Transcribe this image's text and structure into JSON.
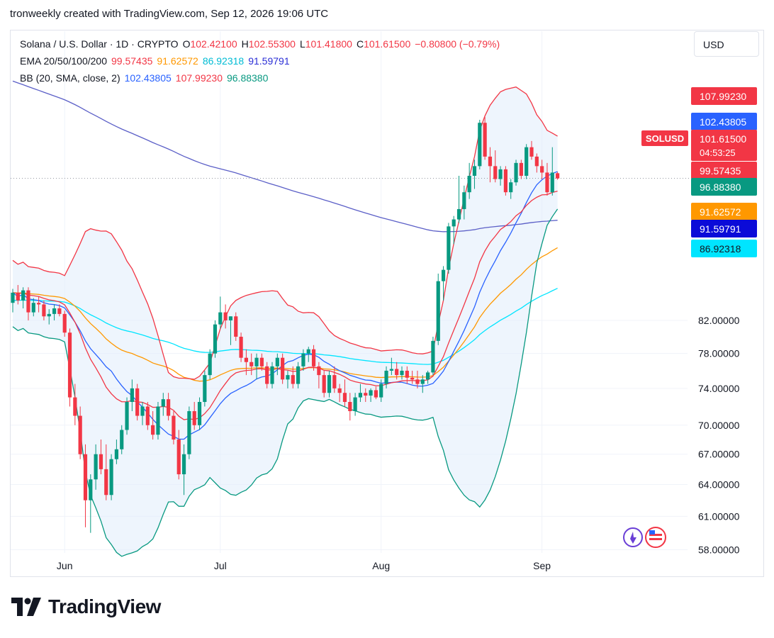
{
  "header": {
    "attribution": "tronweekly created with TradingView.com, Sep 12, 2026 19:06 UTC"
  },
  "legend": {
    "symbol": "Solana / U.S. Dollar · 1D · CRYPTO",
    "o_label": "O",
    "o": "102.42100",
    "h_label": "H",
    "h": "102.55300",
    "l_label": "L",
    "l": "101.41800",
    "c_label": "C",
    "c": "101.61500",
    "change": "−0.80800 (−0.79%)",
    "ema_label": "EMA 20/50/100/200",
    "ema20": "99.57435",
    "ema50": "91.62572",
    "ema100": "86.92318",
    "ema200": "91.59791",
    "bb_label": "BB (20, SMA, close, 2)",
    "bb_basis": "102.43805",
    "bb_upper": "107.99230",
    "bb_lower": "96.88380"
  },
  "currency_button": "USD",
  "brand": "TradingView",
  "colors": {
    "up": "#089981",
    "down": "#f23645",
    "ema20": "#f23645",
    "ema50": "#ff9800",
    "ema100": "#00e5ff",
    "ema200": "#5b5fc7",
    "bb_basis": "#2962ff",
    "bb_upper": "#f23645",
    "bb_lower": "#089981",
    "bb_fill": "#e3eefb"
  },
  "chart_data": {
    "type": "candlestick",
    "title": "Solana / U.S. Dollar · 1D · CRYPTO",
    "x_tick_labels": [
      "Jun",
      "Jul",
      "Aug",
      "Sep"
    ],
    "y_tick_labels": [
      "58.00000",
      "61.00000",
      "64.00000",
      "67.00000",
      "70.00000",
      "74.00000",
      "78.00000",
      "82.00000"
    ],
    "price_axis_scale": "log",
    "y_range": [
      56.5,
      125
    ],
    "start_date": "2026-05-22",
    "candles": [
      [
        84.2,
        86.0,
        83.0,
        85.5
      ],
      [
        85.5,
        86.5,
        84.0,
        84.5
      ],
      [
        84.5,
        86.2,
        83.5,
        85.8
      ],
      [
        85.8,
        86.2,
        82.0,
        83.0
      ],
      [
        83.0,
        84.8,
        82.5,
        84.2
      ],
      [
        84.2,
        85.0,
        83.0,
        84.0
      ],
      [
        84.0,
        84.5,
        82.0,
        82.5
      ],
      [
        82.5,
        83.4,
        81.5,
        82.8
      ],
      [
        82.8,
        84.0,
        82.0,
        83.5
      ],
      [
        83.5,
        84.0,
        82.5,
        82.8
      ],
      [
        82.8,
        83.2,
        80.0,
        80.5
      ],
      [
        80.5,
        81.0,
        72.0,
        73.0
      ],
      [
        73.0,
        74.5,
        70.0,
        71.0
      ],
      [
        71.0,
        72.0,
        66.5,
        67.0
      ],
      [
        67.0,
        68.0,
        60.0,
        62.5
      ],
      [
        62.5,
        65.0,
        59.5,
        64.5
      ],
      [
        64.5,
        68.0,
        63.5,
        67.0
      ],
      [
        67.0,
        68.5,
        65.0,
        65.5
      ],
      [
        65.5,
        68.0,
        62.5,
        63.0
      ],
      [
        63.0,
        67.0,
        62.5,
        66.5
      ],
      [
        66.5,
        68.5,
        66.0,
        67.5
      ],
      [
        67.5,
        70.0,
        67.0,
        69.5
      ],
      [
        69.5,
        73.0,
        69.0,
        72.5
      ],
      [
        72.5,
        75.0,
        71.5,
        74.0
      ],
      [
        74.0,
        74.5,
        70.5,
        71.0
      ],
      [
        71.0,
        72.5,
        70.0,
        72.0
      ],
      [
        72.0,
        72.5,
        69.5,
        70.0
      ],
      [
        70.0,
        71.5,
        68.5,
        69.0
      ],
      [
        69.0,
        72.5,
        68.5,
        72.0
      ],
      [
        72.0,
        73.5,
        71.0,
        72.8
      ],
      [
        72.8,
        73.5,
        70.5,
        71.0
      ],
      [
        71.0,
        71.5,
        68.0,
        68.5
      ],
      [
        68.5,
        69.5,
        64.5,
        65.0
      ],
      [
        65.0,
        68.0,
        63.0,
        67.0
      ],
      [
        67.0,
        72.0,
        66.5,
        71.5
      ],
      [
        71.5,
        72.5,
        69.5,
        70.0
      ],
      [
        70.0,
        73.0,
        69.5,
        72.5
      ],
      [
        72.5,
        76.0,
        72.0,
        75.5
      ],
      [
        75.5,
        78.5,
        75.0,
        78.0
      ],
      [
        78.0,
        82.0,
        77.5,
        81.5
      ],
      [
        81.5,
        85.0,
        81.0,
        83.0
      ],
      [
        83.0,
        84.0,
        81.0,
        82.0
      ],
      [
        82.0,
        82.5,
        79.0,
        82.5
      ],
      [
        82.5,
        83.0,
        79.5,
        80.0
      ],
      [
        80.0,
        80.5,
        77.0,
        77.5
      ],
      [
        77.5,
        78.5,
        75.5,
        77.0
      ],
      [
        77.0,
        78.0,
        75.5,
        76.5
      ],
      [
        76.5,
        78.0,
        75.0,
        77.5
      ],
      [
        77.5,
        78.0,
        76.0,
        76.5
      ],
      [
        76.5,
        77.0,
        74.0,
        74.5
      ],
      [
        74.5,
        77.0,
        74.0,
        76.5
      ],
      [
        76.5,
        78.0,
        75.5,
        77.5
      ],
      [
        77.5,
        78.0,
        74.5,
        75.0
      ],
      [
        75.0,
        76.0,
        74.0,
        75.5
      ],
      [
        75.5,
        76.5,
        74.0,
        74.5
      ],
      [
        74.5,
        77.0,
        74.0,
        76.5
      ],
      [
        76.5,
        78.5,
        76.0,
        78.0
      ],
      [
        78.0,
        78.8,
        77.0,
        78.5
      ],
      [
        78.5,
        79.0,
        76.0,
        76.5
      ],
      [
        76.5,
        77.0,
        74.0,
        75.5
      ],
      [
        75.5,
        76.0,
        73.0,
        73.5
      ],
      [
        73.5,
        76.0,
        73.0,
        75.5
      ],
      [
        75.5,
        76.5,
        73.5,
        74.0
      ],
      [
        74.0,
        74.5,
        72.5,
        73.5
      ],
      [
        73.5,
        75.0,
        72.0,
        72.5
      ],
      [
        72.5,
        73.5,
        70.5,
        71.5
      ],
      [
        71.5,
        73.5,
        71.0,
        73.0
      ],
      [
        73.0,
        74.5,
        72.5,
        73.5
      ],
      [
        73.5,
        74.0,
        72.5,
        73.2
      ],
      [
        73.2,
        74.0,
        72.5,
        73.8
      ],
      [
        73.8,
        74.2,
        72.8,
        73.0
      ],
      [
        73.0,
        75.0,
        72.5,
        74.5
      ],
      [
        74.5,
        76.5,
        74.0,
        76.0
      ],
      [
        76.0,
        77.5,
        75.5,
        76.2
      ],
      [
        76.2,
        77.0,
        75.0,
        75.5
      ],
      [
        75.5,
        76.5,
        75.0,
        76.0
      ],
      [
        76.0,
        76.5,
        74.5,
        75.2
      ],
      [
        75.2,
        76.0,
        74.5,
        75.0
      ],
      [
        75.0,
        76.0,
        74.0,
        74.5
      ],
      [
        74.5,
        75.5,
        73.5,
        75.0
      ],
      [
        75.0,
        76.0,
        74.5,
        75.8
      ],
      [
        75.8,
        80.0,
        75.5,
        79.5
      ],
      [
        79.5,
        88.0,
        79.0,
        87.0
      ],
      [
        87.0,
        89.0,
        84.5,
        88.5
      ],
      [
        88.5,
        95.0,
        88.0,
        94.5
      ],
      [
        94.5,
        96.0,
        92.0,
        95.5
      ],
      [
        95.5,
        102.0,
        95.0,
        97.0
      ],
      [
        97.0,
        100.5,
        95.5,
        99.5
      ],
      [
        99.5,
        104.0,
        98.5,
        102.0
      ],
      [
        102.0,
        104.5,
        100.0,
        103.5
      ],
      [
        103.5,
        111.0,
        103.0,
        110.5
      ],
      [
        110.5,
        111.5,
        104.5,
        105.0
      ],
      [
        105.0,
        106.5,
        101.0,
        103.5
      ],
      [
        103.5,
        106.0,
        101.0,
        101.5
      ],
      [
        101.5,
        103.5,
        100.5,
        103.0
      ],
      [
        103.0,
        103.5,
        99.0,
        99.5
      ],
      [
        99.5,
        101.5,
        98.5,
        101.0
      ],
      [
        101.0,
        104.5,
        100.5,
        104.0
      ],
      [
        104.0,
        104.5,
        101.5,
        102.0
      ],
      [
        102.0,
        107.0,
        101.5,
        106.5
      ],
      [
        106.5,
        107.5,
        104.5,
        105.0
      ],
      [
        105.0,
        105.5,
        102.5,
        103.5
      ],
      [
        103.5,
        104.5,
        101.5,
        102.5
      ],
      [
        102.5,
        104.0,
        99.0,
        99.5
      ],
      [
        99.5,
        106.5,
        99.0,
        102.5
      ],
      [
        102.4,
        102.6,
        101.4,
        101.6
      ]
    ],
    "ema20_end": 99.57435,
    "ema50_end": 91.62572,
    "ema100_end": 86.92318,
    "ema200_end": 91.59791,
    "bb_basis_end": 102.43805,
    "bb_upper_end": 107.9923,
    "bb_lower_end": 96.8838,
    "last_price": 101.615,
    "price_labels": {
      "bb_upper": "107.99230",
      "bb_basis": "102.43805",
      "symbol": "SOLUSD",
      "close": "101.61500",
      "countdown": "04:53:25",
      "ema20": "99.57435",
      "bb_lower": "96.88380",
      "ema50": "91.62572",
      "ema200": "91.59791",
      "ema100": "86.92318"
    },
    "grid": true
  }
}
